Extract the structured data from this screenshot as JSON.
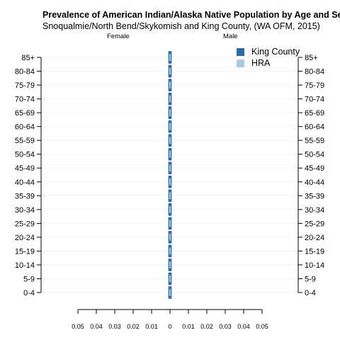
{
  "chart_data": {
    "type": "bar",
    "title": "Prevalence of American Indian/Alaska Native Population by Age and Sex",
    "subtitle": "Snoqualmie/North Bend/Skykomish and King County, (WA OFM, 2015)",
    "left_label": "Female",
    "right_label": "Male",
    "categories": [
      "0-4",
      "5-9",
      "10-14",
      "15-19",
      "20-24",
      "25-29",
      "30-34",
      "35-39",
      "40-44",
      "45-49",
      "50-54",
      "55-59",
      "60-64",
      "65-69",
      "70-74",
      "75-79",
      "80-84",
      "85+"
    ],
    "x_ticks": [
      "0.05",
      "0.04",
      "0.03",
      "0.02",
      "0.01",
      "0",
      "0.01",
      "0.02",
      "0.03",
      "0.04",
      "0.05"
    ],
    "xlim": [
      -0.05,
      0.05
    ],
    "series": [
      {
        "name": "King County",
        "color": "#2e6aa8",
        "female": [
          0.0009,
          0.0009,
          0.0009,
          0.0009,
          0.0009,
          0.0009,
          0.0009,
          0.0009,
          0.0009,
          0.0009,
          0.0009,
          0.0009,
          0.0009,
          0.0009,
          0.0009,
          0.0009,
          0.0009,
          0.0009
        ],
        "male": [
          0.0009,
          0.0009,
          0.0009,
          0.0009,
          0.0009,
          0.0009,
          0.0009,
          0.0009,
          0.0009,
          0.0009,
          0.0009,
          0.0009,
          0.0009,
          0.0009,
          0.0009,
          0.0009,
          0.0009,
          0.0009
        ]
      },
      {
        "name": "HRA",
        "color": "#a9cbe2",
        "female": [
          0.0004,
          0.0004,
          0.0004,
          0.0004,
          0.0004,
          0.0004,
          0.0004,
          0.0004,
          0.0004,
          0.0004,
          0.0004,
          0.0004,
          0.0004,
          0.0004,
          0.0004,
          0.0004,
          0.0004,
          0.0004
        ],
        "male": [
          0.0004,
          0.0004,
          0.0004,
          0.0004,
          0.0004,
          0.0004,
          0.0004,
          0.0004,
          0.0004,
          0.0004,
          0.0004,
          0.0004,
          0.0004,
          0.0004,
          0.0004,
          0.0004,
          0.0004,
          0.0004
        ]
      }
    ],
    "grid": true,
    "legend_position": "top-right"
  }
}
